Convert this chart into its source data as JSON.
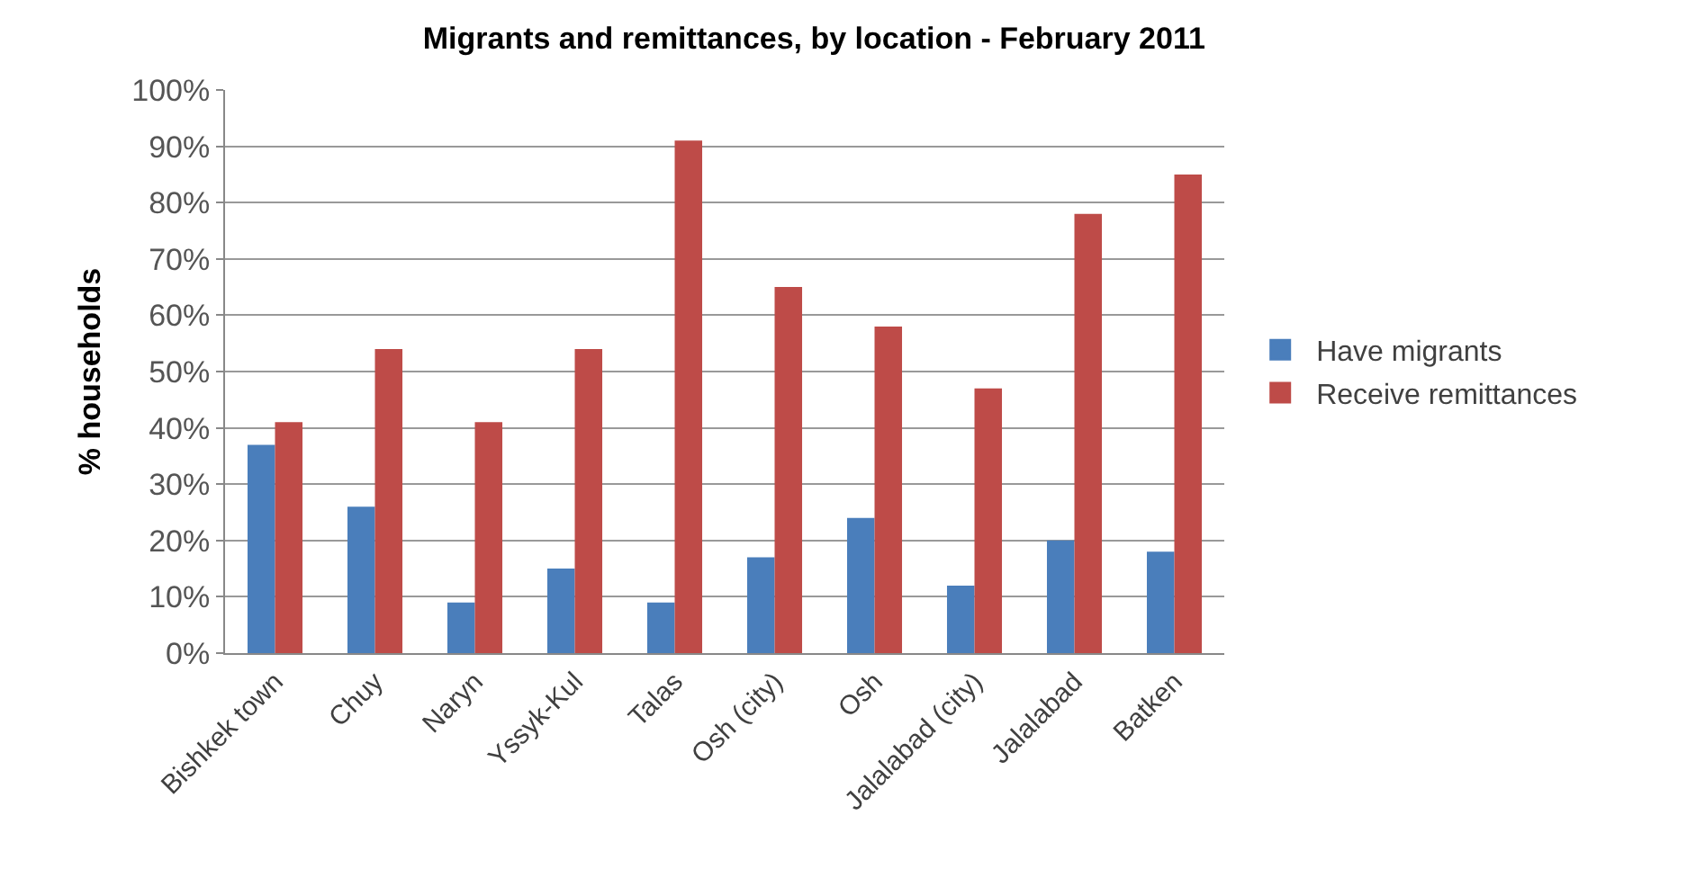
{
  "chart_data": {
    "type": "bar",
    "title": "Migrants and remittances, by location - February 2011",
    "ylabel": "% households",
    "categories": [
      "Bishkek town",
      "Chuy",
      "Naryn",
      "Yssyk-Kul",
      "Talas",
      "Osh (city)",
      "Osh",
      "Jalalabad (city)",
      "Jalalabad",
      "Batken"
    ],
    "series": [
      {
        "name": "Have migrants",
        "color": "#4a7ebb",
        "values": [
          37,
          26,
          9,
          15,
          9,
          17,
          24,
          12,
          20,
          18
        ]
      },
      {
        "name": "Receive remittances",
        "color": "#be4b48",
        "values": [
          41,
          54,
          41,
          54,
          91,
          65,
          58,
          47,
          78,
          85
        ]
      }
    ],
    "ylim": [
      0,
      100
    ],
    "yticks": [
      {
        "value": 0,
        "label": "0%"
      },
      {
        "value": 10,
        "label": "10%"
      },
      {
        "value": 20,
        "label": "20%"
      },
      {
        "value": 30,
        "label": "30%"
      },
      {
        "value": 40,
        "label": "40%"
      },
      {
        "value": 50,
        "label": "50%"
      },
      {
        "value": 60,
        "label": "60%"
      },
      {
        "value": 70,
        "label": "70%"
      },
      {
        "value": 80,
        "label": "80%"
      },
      {
        "value": 90,
        "label": "90%"
      },
      {
        "value": 100,
        "label": "100%"
      }
    ],
    "grid": "y",
    "legend": "right"
  }
}
